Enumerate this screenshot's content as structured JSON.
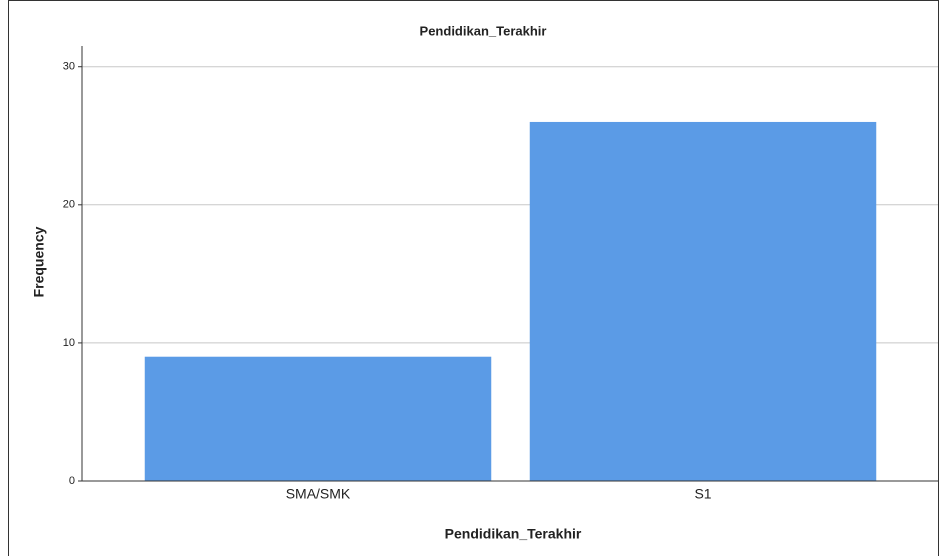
{
  "chart_data": {
    "type": "bar",
    "title": "Pendidikan_Terakhir",
    "x_label": "Pendidikan_Terakhir",
    "y_label": "Frequency",
    "categories": [
      "SMA/SMK",
      "S1"
    ],
    "values": [
      9,
      26
    ],
    "color": "#5b9be6",
    "ylim": [
      0,
      31.5
    ],
    "yticks": [
      0,
      10,
      20,
      30
    ],
    "grid": true
  }
}
